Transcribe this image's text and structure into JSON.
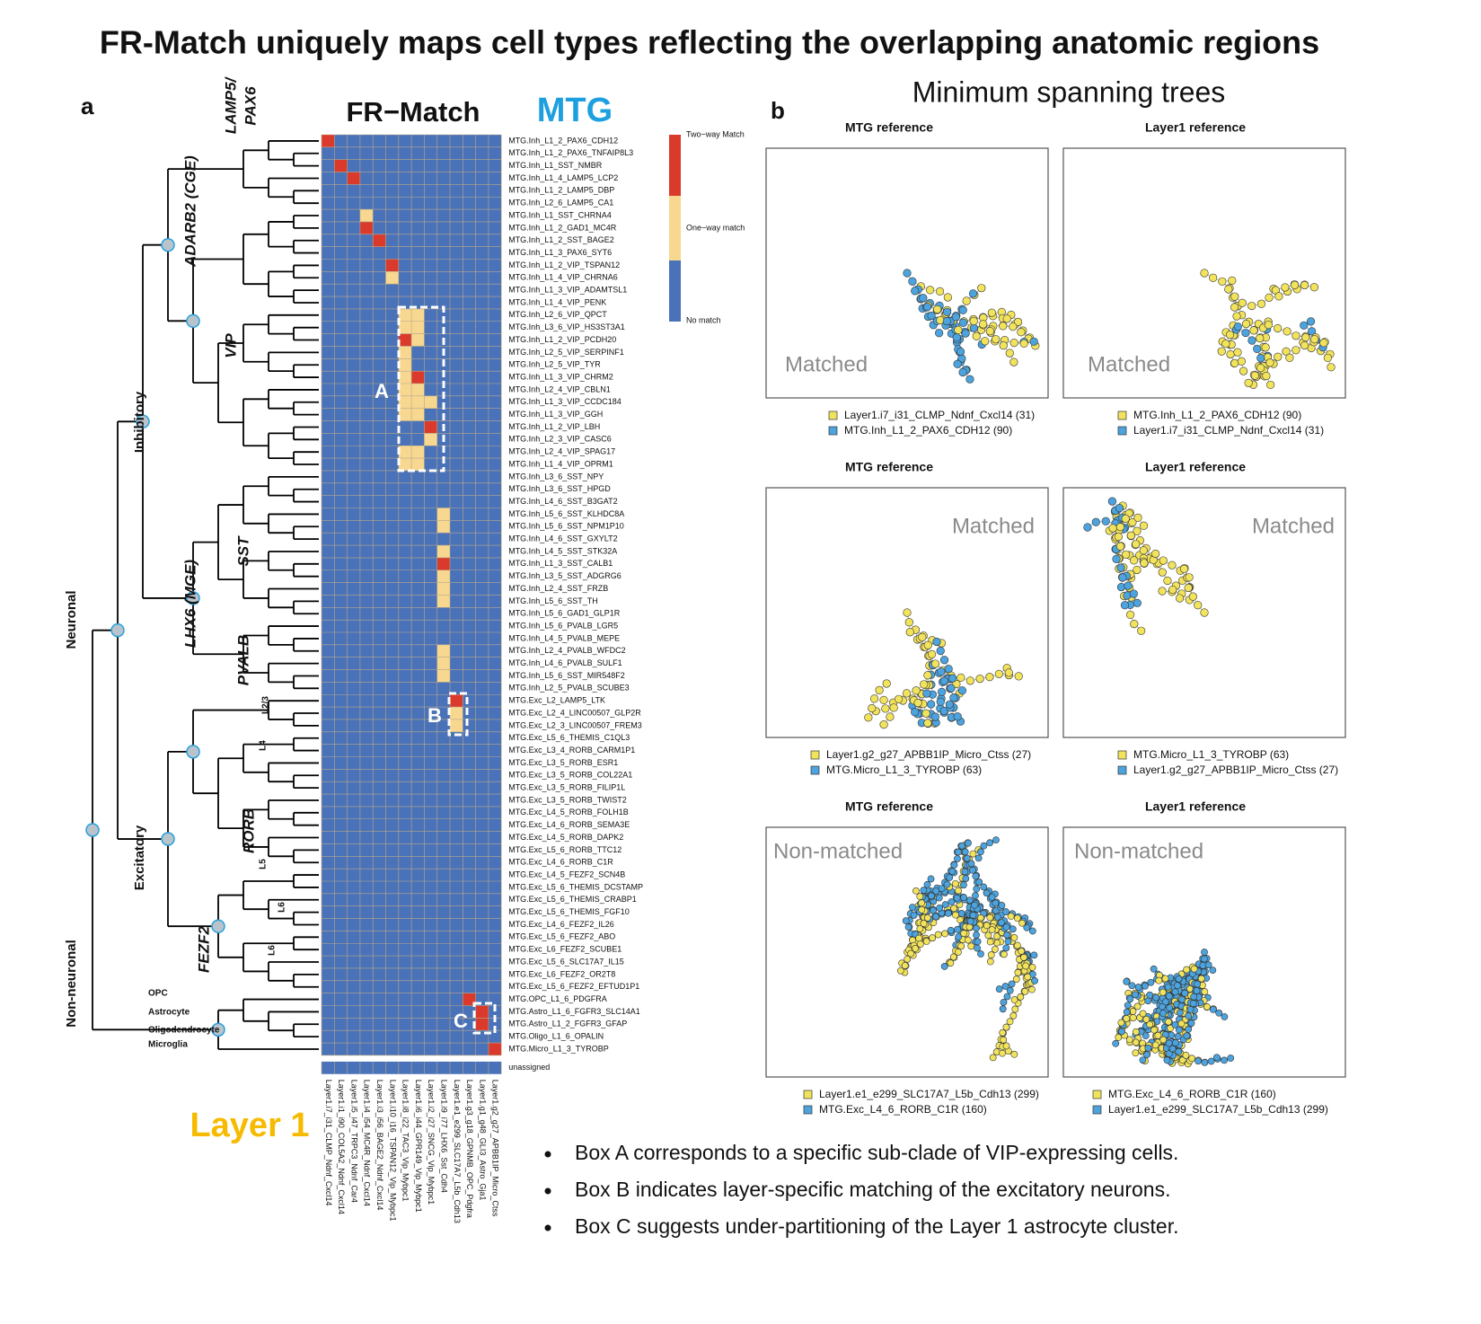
{
  "title": "FR-Match uniquely maps cell types reflecting the overlapping anatomic regions",
  "panel_a": {
    "label": "a",
    "heatmap_title": "FR−Match",
    "reference": "MTG",
    "query": "Layer 1",
    "rows": [
      "MTG.Inh_L1_2_PAX6_CDH12",
      "MTG.Inh_L1_2_PAX6_TNFAIP8L3",
      "MTG.Inh_L1_SST_NMBR",
      "MTG.Inh_L1_4_LAMP5_LCP2",
      "MTG.Inh_L1_2_LAMP5_DBP",
      "MTG.Inh_L2_6_LAMP5_CA1",
      "MTG.Inh_L1_SST_CHRNA4",
      "MTG.Inh_L1_2_GAD1_MC4R",
      "MTG.Inh_L1_2_SST_BAGE2",
      "MTG.Inh_L1_3_PAX6_SYT6",
      "MTG.Inh_L1_2_VIP_TSPAN12",
      "MTG.Inh_L1_4_VIP_CHRNA6",
      "MTG.Inh_L1_3_VIP_ADAMTSL1",
      "MTG.Inh_L1_4_VIP_PENK",
      "MTG.Inh_L2_6_VIP_QPCT",
      "MTG.Inh_L3_6_VIP_HS3ST3A1",
      "MTG.Inh_L1_2_VIP_PCDH20",
      "MTG.Inh_L2_5_VIP_SERPINF1",
      "MTG.Inh_L2_5_VIP_TYR",
      "MTG.Inh_L1_3_VIP_CHRM2",
      "MTG.Inh_L2_4_VIP_CBLN1",
      "MTG.Inh_L1_3_VIP_CCDC184",
      "MTG.Inh_L1_3_VIP_GGH",
      "MTG.Inh_L1_2_VIP_LBH",
      "MTG.Inh_L2_3_VIP_CASC6",
      "MTG.Inh_L2_4_VIP_SPAG17",
      "MTG.Inh_L1_4_VIP_OPRM1",
      "MTG.Inh_L3_6_SST_NPY",
      "MTG.Inh_L3_6_SST_HPGD",
      "MTG.Inh_L4_6_SST_B3GAT2",
      "MTG.Inh_L5_6_SST_KLHDC8A",
      "MTG.Inh_L5_6_SST_NPM1P10",
      "MTG.Inh_L4_6_SST_GXYLT2",
      "MTG.Inh_L4_5_SST_STK32A",
      "MTG.Inh_L1_3_SST_CALB1",
      "MTG.Inh_L3_5_SST_ADGRG6",
      "MTG.Inh_L2_4_SST_FRZB",
      "MTG.Inh_L5_6_SST_TH",
      "MTG.Inh_L5_6_GAD1_GLP1R",
      "MTG.Inh_L5_6_PVALB_LGR5",
      "MTG.Inh_L4_5_PVALB_MEPE",
      "MTG.Inh_L2_4_PVALB_WFDC2",
      "MTG.Inh_L4_6_PVALB_SULF1",
      "MTG.Inh_L5_6_SST_MIR548F2",
      "MTG.Inh_L2_5_PVALB_SCUBE3",
      "MTG.Exc_L2_LAMP5_LTK",
      "MTG.Exc_L2_4_LINC00507_GLP2R",
      "MTG.Exc_L2_3_LINC00507_FREM3",
      "MTG.Exc_L5_6_THEMIS_C1QL3",
      "MTG.Exc_L3_4_RORB_CARM1P1",
      "MTG.Exc_L3_5_RORB_ESR1",
      "MTG.Exc_L3_5_RORB_COL22A1",
      "MTG.Exc_L3_5_RORB_FILIP1L",
      "MTG.Exc_L3_5_RORB_TWIST2",
      "MTG.Exc_L4_5_RORB_FOLH1B",
      "MTG.Exc_L4_6_RORB_SEMA3E",
      "MTG.Exc_L4_5_RORB_DAPK2",
      "MTG.Exc_L5_6_RORB_TTC12",
      "MTG.Exc_L4_6_RORB_C1R",
      "MTG.Exc_L4_5_FEZF2_SCN4B",
      "MTG.Exc_L5_6_THEMIS_DCSTAMP",
      "MTG.Exc_L5_6_THEMIS_CRABP1",
      "MTG.Exc_L5_6_THEMIS_FGF10",
      "MTG.Exc_L4_6_FEZF2_IL26",
      "MTG.Exc_L5_6_FEZF2_ABO",
      "MTG.Exc_L6_FEZF2_SCUBE1",
      "MTG.Exc_L5_6_SLC17A7_IL15",
      "MTG.Exc_L6_FEZF2_OR2T8",
      "MTG.Exc_L5_6_FEZF2_EFTUD1P1",
      "MTG.OPC_L1_6_PDGFRA",
      "MTG.Astro_L1_6_FGFR3_SLC14A1",
      "MTG.Astro_L1_2_FGFR3_GFAP",
      "MTG.Oligo_L1_6_OPALIN",
      "MTG.Micro_L1_3_TYROBP"
    ],
    "unassigned": "unassigned",
    "columns": [
      "Layer1.i7_i31_CLMP_Ndnf_Cxcl14",
      "Layer1.i1_i90_COL5A2_Ndnf_Cxcl14",
      "Layer1.i5_i47_TRPC3_Ndnf_Car4",
      "Layer1.i4_i54_MC4R_Ndnf_Cxcl14",
      "Layer1.i3_i56_BAGE2_Ndnf_Cxcl14",
      "Layer1.i10_i16_TSPAN12_Vip_Mybpc1",
      "Layer1.i8_i22_TAC3_Vip_Mybpc1",
      "Layer1.i6_i44_GPR149_Vip_Mybpc1",
      "Layer1.i2_i27_SNCG_Vip_Mybpc1",
      "Layer1.i9_i77_LHX6_Sst_Cdh4",
      "Layer1.e1_e299_SLC17A7_L5b_Cdh13",
      "Layer1.g3_g18_GPNMB_OPC_Pdgfra",
      "Layer1.g1_g48_GLI3_Astro_Gja1",
      "Layer1.g2_g27_APBB1IP_Micro_Ctss"
    ],
    "legend": [
      {
        "label": "Two−way Match",
        "color": "#d93a2b"
      },
      {
        "label": "One−way match",
        "color": "#f8d890"
      },
      {
        "label": "No match",
        "color": "#4a72b8"
      }
    ],
    "matches": [
      [
        0,
        0,
        0
      ],
      [
        2,
        1,
        0
      ],
      [
        3,
        2,
        0
      ],
      [
        6,
        3,
        1
      ],
      [
        7,
        3,
        0
      ],
      [
        8,
        4,
        0
      ],
      [
        10,
        5,
        0
      ],
      [
        11,
        5,
        1
      ],
      [
        14,
        6,
        1
      ],
      [
        14,
        7,
        1
      ],
      [
        15,
        6,
        1
      ],
      [
        15,
        7,
        1
      ],
      [
        16,
        6,
        0
      ],
      [
        16,
        7,
        1
      ],
      [
        17,
        6,
        1
      ],
      [
        18,
        6,
        1
      ],
      [
        19,
        6,
        1
      ],
      [
        19,
        7,
        0
      ],
      [
        20,
        6,
        1
      ],
      [
        20,
        7,
        1
      ],
      [
        21,
        6,
        1
      ],
      [
        21,
        7,
        1
      ],
      [
        21,
        8,
        1
      ],
      [
        22,
        6,
        1
      ],
      [
        22,
        7,
        1
      ],
      [
        23,
        8,
        0
      ],
      [
        24,
        8,
        1
      ],
      [
        25,
        6,
        1
      ],
      [
        25,
        7,
        1
      ],
      [
        26,
        6,
        1
      ],
      [
        26,
        7,
        1
      ],
      [
        30,
        9,
        1
      ],
      [
        31,
        9,
        1
      ],
      [
        33,
        9,
        1
      ],
      [
        34,
        9,
        0
      ],
      [
        35,
        9,
        1
      ],
      [
        36,
        9,
        1
      ],
      [
        37,
        9,
        1
      ],
      [
        41,
        9,
        1
      ],
      [
        42,
        9,
        1
      ],
      [
        43,
        9,
        1
      ],
      [
        45,
        10,
        0
      ],
      [
        46,
        10,
        1
      ],
      [
        47,
        10,
        1
      ],
      [
        69,
        11,
        0
      ],
      [
        70,
        12,
        0
      ],
      [
        71,
        12,
        0
      ],
      [
        73,
        13,
        0
      ]
    ],
    "boxes": [
      "A",
      "B",
      "C"
    ],
    "clades": [
      "LAMP5/",
      "PAX6",
      "ADARB2 (CGE)",
      "VIP",
      "Inhibitory",
      "LHX6 (MGE)",
      "SST",
      "PVALB",
      "Neuronal",
      "L2/3",
      "L4",
      "RORB",
      "L5",
      "Excitatory",
      "L6",
      "FEZF2",
      "L6",
      "Non-neuronal",
      "OPC",
      "Astrocyte",
      "Oligodendrocyte",
      "Microglia"
    ]
  },
  "panel_b": {
    "label": "b",
    "title": "Minimum spanning trees",
    "plots": [
      {
        "header": "MTG reference",
        "note": "Matched",
        "legend": [
          {
            "label": "Layer1.i7_i31_CLMP_Ndnf_Cxcl14 (31)",
            "color": "#f2e35c"
          },
          {
            "label": "MTG.Inh_L1_2_PAX6_CDH12 (90)",
            "color": "#4ca3dd"
          }
        ]
      },
      {
        "header": "Layer1 reference",
        "note": "Matched",
        "legend": [
          {
            "label": "MTG.Inh_L1_2_PAX6_CDH12 (90)",
            "color": "#f2e35c"
          },
          {
            "label": "Layer1.i7_i31_CLMP_Ndnf_Cxcl14 (31)",
            "color": "#4ca3dd"
          }
        ]
      },
      {
        "header": "MTG reference",
        "note": "Matched",
        "legend": [
          {
            "label": "Layer1.g2_g27_APBB1IP_Micro_Ctss (27)",
            "color": "#f2e35c"
          },
          {
            "label": "MTG.Micro_L1_3_TYROBP (63)",
            "color": "#4ca3dd"
          }
        ]
      },
      {
        "header": "Layer1 reference",
        "note": "Matched",
        "legend": [
          {
            "label": "MTG.Micro_L1_3_TYROBP (63)",
            "color": "#f2e35c"
          },
          {
            "label": "Layer1.g2_g27_APBB1IP_Micro_Ctss (27)",
            "color": "#4ca3dd"
          }
        ]
      },
      {
        "header": "MTG reference",
        "note": "Non-matched",
        "legend": [
          {
            "label": "Layer1.e1_e299_SLC17A7_L5b_Cdh13 (299)",
            "color": "#f2e35c"
          },
          {
            "label": "MTG.Exc_L4_6_RORB_C1R (160)",
            "color": "#4ca3dd"
          }
        ]
      },
      {
        "header": "Layer1 reference",
        "note": "Non-matched",
        "legend": [
          {
            "label": "MTG.Exc_L4_6_RORB_C1R (160)",
            "color": "#f2e35c"
          },
          {
            "label": "Layer1.e1_e299_SLC17A7_L5b_Cdh13 (299)",
            "color": "#4ca3dd"
          }
        ]
      }
    ]
  },
  "bullets": [
    "Box A corresponds to a specific sub-clade of VIP-expressing cells.",
    "Box B indicates layer-specific matching of the excitatory neurons.",
    "Box C suggests under-partitioning of the Layer 1 astrocyte cluster."
  ]
}
